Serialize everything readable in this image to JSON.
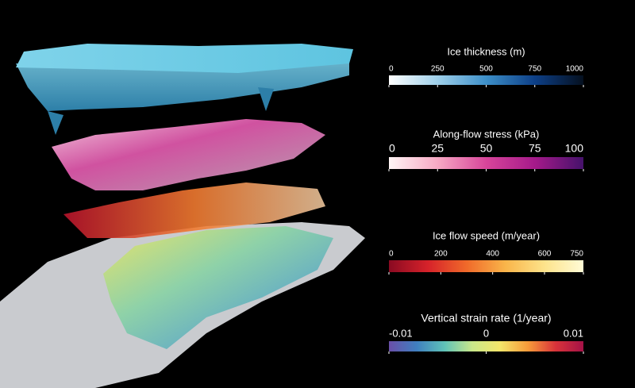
{
  "colorbars": [
    {
      "title": "Ice thickness (m)",
      "lim": [
        0,
        1000
      ],
      "ticks": [
        0,
        250,
        500,
        750,
        1000
      ],
      "colors": [
        "#ffffff",
        "#9fd0ea",
        "#3d8fc8",
        "#0d3f87",
        "#05101f"
      ]
    },
    {
      "title": "Along-flow stress (kPa)",
      "lim": [
        0,
        100
      ],
      "ticks": [
        0,
        25,
        50,
        75,
        100
      ],
      "colors": [
        "#fff5f5",
        "#f7a9c4",
        "#d8459a",
        "#a51a8a",
        "#45126b"
      ]
    },
    {
      "title": "Ice flow speed (m/year)",
      "lim": [
        0,
        750
      ],
      "ticks": [
        0,
        200,
        400,
        600,
        750
      ],
      "colors": [
        "#8a0a22",
        "#d6222a",
        "#f06a2a",
        "#f9b54a",
        "#fde38b",
        "#fffbd6"
      ]
    },
    {
      "title": "Vertical strain rate (1/year)",
      "lim": [
        -0.01,
        0.01
      ],
      "ticks": [
        -0.01,
        0,
        0.01
      ],
      "colors": [
        "#6a4fa8",
        "#3f7fc0",
        "#5fc3b8",
        "#c9e88a",
        "#f4e66a",
        "#f79b3a",
        "#d8333a",
        "#a51247"
      ]
    }
  ]
}
